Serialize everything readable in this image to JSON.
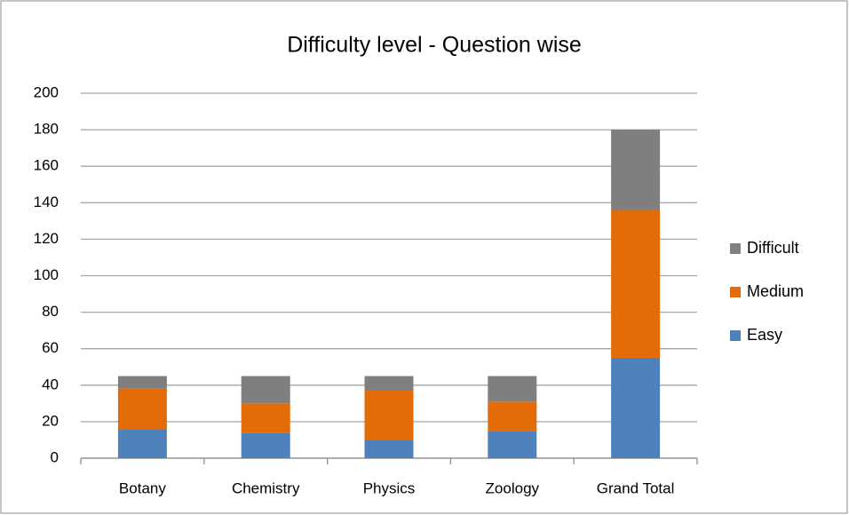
{
  "chart_data": {
    "type": "bar",
    "stacked": true,
    "title": "Difficulty level - Question wise",
    "categories": [
      "Botany",
      "Chemistry",
      "Physics",
      "Zoology",
      "Grand Total"
    ],
    "series": [
      {
        "name": "Easy",
        "color": "#4f81bd",
        "values": [
          16,
          14,
          10,
          15,
          55
        ]
      },
      {
        "name": "Medium",
        "color": "#e36c09",
        "values": [
          22,
          16,
          27,
          16,
          81
        ]
      },
      {
        "name": "Difficult",
        "color": "#7f7f7f",
        "values": [
          7,
          15,
          8,
          14,
          44
        ]
      }
    ],
    "ylim": [
      0,
      200
    ],
    "yticks": [
      0,
      20,
      40,
      60,
      80,
      100,
      120,
      140,
      160,
      180,
      200
    ],
    "grid": true,
    "legend": "right"
  }
}
